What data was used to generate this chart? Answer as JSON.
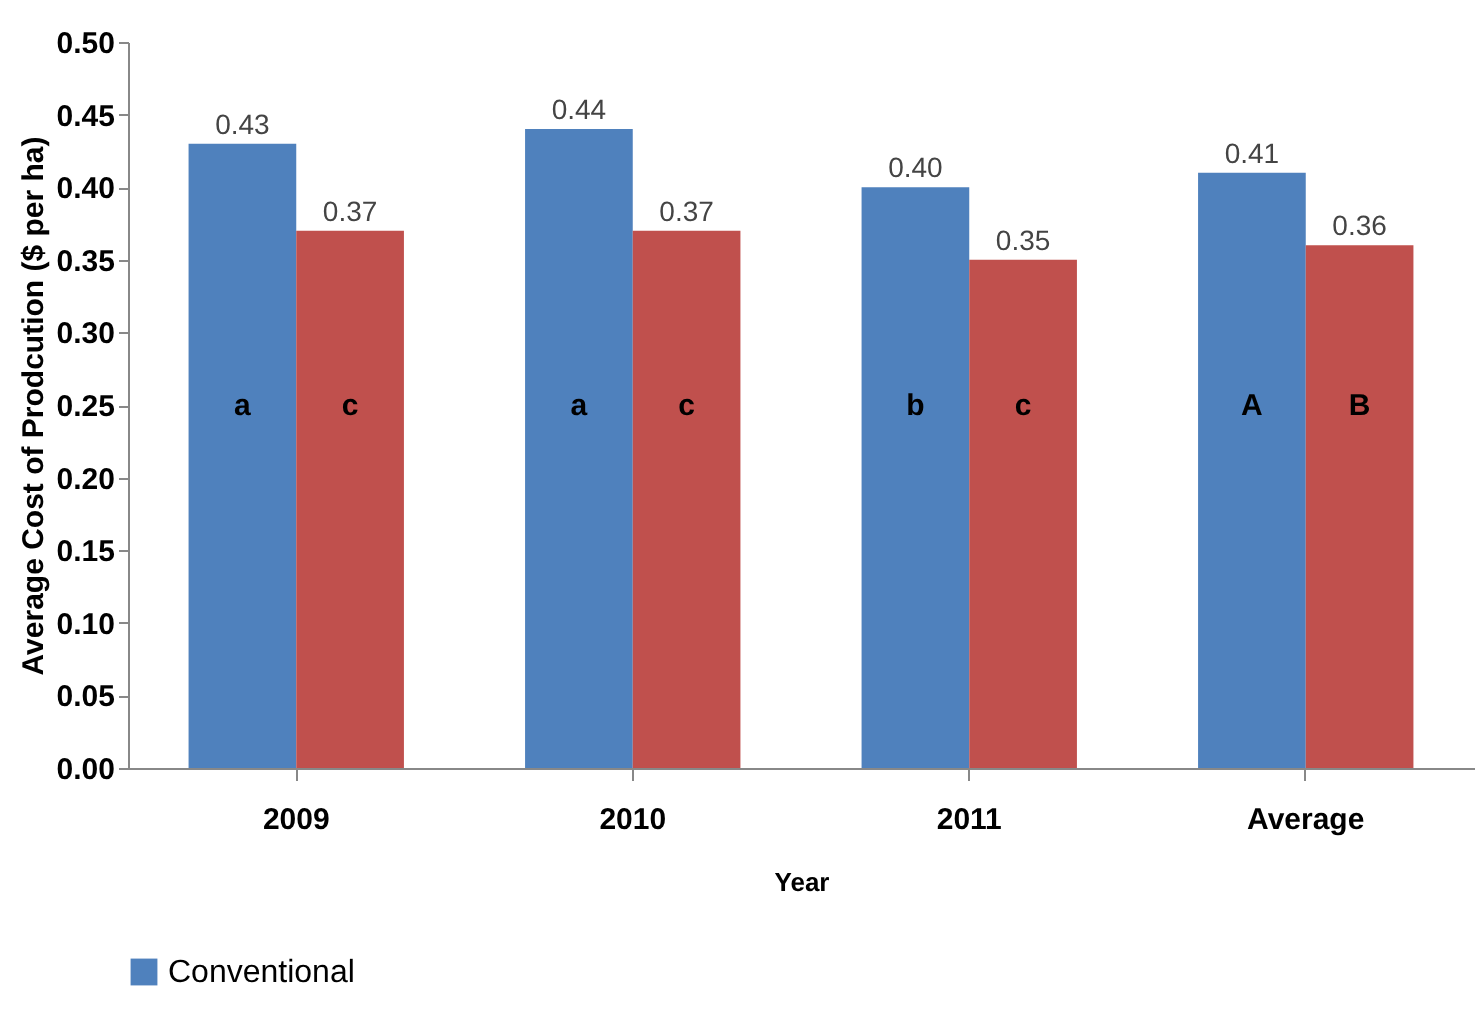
{
  "chart_data": {
    "type": "bar",
    "xlabel": "Year",
    "ylabel": "Average Cost of Prodcution ($ per ha)",
    "categories": [
      "2009",
      "2010",
      "2011",
      "Average"
    ],
    "series": [
      {
        "name": "Conventional",
        "color": "#4f81bd",
        "values": [
          0.43,
          0.44,
          0.4,
          0.41
        ],
        "value_labels": [
          "0.43",
          "0.44",
          "0.40",
          "0.41"
        ]
      },
      {
        "color": "#c0504d",
        "values": [
          0.37,
          0.37,
          0.35,
          0.36
        ],
        "value_labels": [
          "0.37",
          "0.37",
          "0.35",
          "0.36"
        ]
      }
    ],
    "ylim": [
      0,
      0.5
    ],
    "yticks": [
      {
        "value": 0,
        "label": "0.00"
      },
      {
        "value": 0.05,
        "label": "0.05"
      },
      {
        "value": 0.1,
        "label": "0.10"
      },
      {
        "value": 0.15,
        "label": "0.15"
      },
      {
        "value": 0.2,
        "label": "0.20"
      },
      {
        "value": 0.25,
        "label": "0.25"
      },
      {
        "value": 0.3,
        "label": "0.30"
      },
      {
        "value": 0.35,
        "label": "0.35"
      },
      {
        "value": 0.4,
        "label": "0.40"
      },
      {
        "value": 0.45,
        "label": "0.45"
      },
      {
        "value": 0.5,
        "label": "0.50"
      }
    ],
    "grid": false,
    "legend": "bottom",
    "annotations": [
      {
        "text": "a",
        "x": "2009",
        "y": 0.25
      },
      {
        "text": "c",
        "x": "2009",
        "y": 0.25
      },
      {
        "text": "a",
        "x": "2010",
        "y": 0.25
      },
      {
        "text": "c",
        "x": "2010",
        "y": 0.25
      },
      {
        "text": "b",
        "x": "2011",
        "y": 0.25
      },
      {
        "text": "c",
        "x": "2011",
        "y": 0.25
      },
      {
        "text": "A",
        "x": "Average",
        "y": 0.25
      },
      {
        "text": "B",
        "x": "Average",
        "y": 0.25
      }
    ]
  }
}
